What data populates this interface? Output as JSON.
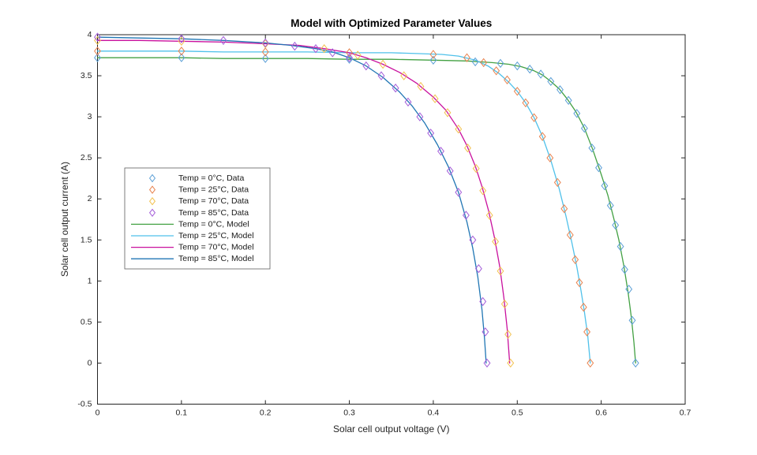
{
  "theme": {
    "background": "#ffffff",
    "axis_color": "#242424",
    "tick_label_color": "#262626",
    "title_color": "#000000",
    "legend_border_color": "#5f5f5f",
    "legend_background": "#ffffff"
  },
  "chart_data": {
    "type": "line",
    "title": "Model with Optimized Parameter Values",
    "xlabel": "Solar cell output voltage (V)",
    "ylabel": "Solar cell output current (A)",
    "xlim": [
      0,
      0.7
    ],
    "ylim": [
      -0.5,
      4
    ],
    "grid": false,
    "box": true,
    "tick_direction": "in",
    "legend_position": "left-middle",
    "xticks": {
      "values": [
        0,
        0.1,
        0.2,
        0.3,
        0.4,
        0.5,
        0.6,
        0.7
      ],
      "labels": [
        "0",
        "0.1",
        "0.2",
        "0.3",
        "0.4",
        "0.5",
        "0.6",
        "0.7"
      ]
    },
    "yticks": {
      "values": [
        -0.5,
        0,
        0.5,
        1,
        1.5,
        2,
        2.5,
        3,
        3.5,
        4
      ],
      "labels": [
        "-0.5",
        "0",
        "0.5",
        "1",
        "1.5",
        "2",
        "2.5",
        "3",
        "3.5",
        "4"
      ]
    },
    "series": [
      {
        "name": "Temp = 0°C, Data",
        "kind": "scatter",
        "marker": "diamond",
        "color": "#5B9FD6",
        "points": [
          [
            0,
            3.72
          ],
          [
            0.1,
            3.72
          ],
          [
            0.2,
            3.71
          ],
          [
            0.3,
            3.7
          ],
          [
            0.4,
            3.69
          ],
          [
            0.45,
            3.67
          ],
          [
            0.48,
            3.65
          ],
          [
            0.5,
            3.62
          ],
          [
            0.515,
            3.58
          ],
          [
            0.528,
            3.52
          ],
          [
            0.54,
            3.43
          ],
          [
            0.551,
            3.33
          ],
          [
            0.561,
            3.2
          ],
          [
            0.571,
            3.04
          ],
          [
            0.58,
            2.86
          ],
          [
            0.589,
            2.62
          ],
          [
            0.597,
            2.38
          ],
          [
            0.604,
            2.16
          ],
          [
            0.611,
            1.92
          ],
          [
            0.617,
            1.68
          ],
          [
            0.623,
            1.42
          ],
          [
            0.628,
            1.14
          ],
          [
            0.633,
            0.9
          ],
          [
            0.637,
            0.52
          ],
          [
            0.641,
            0
          ]
        ]
      },
      {
        "name": "Temp = 25°C, Data",
        "kind": "scatter",
        "marker": "diamond",
        "color": "#E8824E",
        "points": [
          [
            0,
            3.8
          ],
          [
            0.1,
            3.8
          ],
          [
            0.2,
            3.79
          ],
          [
            0.3,
            3.78
          ],
          [
            0.4,
            3.76
          ],
          [
            0.44,
            3.72
          ],
          [
            0.46,
            3.66
          ],
          [
            0.475,
            3.56
          ],
          [
            0.488,
            3.45
          ],
          [
            0.5,
            3.31
          ],
          [
            0.51,
            3.17
          ],
          [
            0.52,
            2.99
          ],
          [
            0.53,
            2.76
          ],
          [
            0.539,
            2.5
          ],
          [
            0.548,
            2.2
          ],
          [
            0.556,
            1.88
          ],
          [
            0.563,
            1.56
          ],
          [
            0.569,
            1.26
          ],
          [
            0.574,
            0.98
          ],
          [
            0.579,
            0.68
          ],
          [
            0.583,
            0.38
          ],
          [
            0.587,
            0
          ]
        ]
      },
      {
        "name": "Temp = 70°C, Data",
        "kind": "scatter",
        "marker": "diamond",
        "color": "#F2C14E",
        "points": [
          [
            0,
            3.93
          ],
          [
            0.1,
            3.92
          ],
          [
            0.2,
            3.89
          ],
          [
            0.27,
            3.83
          ],
          [
            0.31,
            3.75
          ],
          [
            0.34,
            3.64
          ],
          [
            0.365,
            3.5
          ],
          [
            0.385,
            3.37
          ],
          [
            0.402,
            3.22
          ],
          [
            0.417,
            3.05
          ],
          [
            0.43,
            2.85
          ],
          [
            0.441,
            2.62
          ],
          [
            0.451,
            2.37
          ],
          [
            0.459,
            2.1
          ],
          [
            0.467,
            1.8
          ],
          [
            0.474,
            1.48
          ],
          [
            0.48,
            1.12
          ],
          [
            0.485,
            0.72
          ],
          [
            0.489,
            0.35
          ],
          [
            0.492,
            0
          ]
        ]
      },
      {
        "name": "Temp = 85°C, Data",
        "kind": "scatter",
        "marker": "diamond",
        "color": "#A35CD9",
        "points": [
          [
            0,
            3.97
          ],
          [
            0.1,
            3.95
          ],
          [
            0.15,
            3.93
          ],
          [
            0.2,
            3.9
          ],
          [
            0.235,
            3.86
          ],
          [
            0.26,
            3.83
          ],
          [
            0.28,
            3.78
          ],
          [
            0.3,
            3.72
          ],
          [
            0.32,
            3.62
          ],
          [
            0.338,
            3.5
          ],
          [
            0.355,
            3.35
          ],
          [
            0.37,
            3.18
          ],
          [
            0.384,
            3.0
          ],
          [
            0.397,
            2.8
          ],
          [
            0.409,
            2.58
          ],
          [
            0.42,
            2.34
          ],
          [
            0.43,
            2.08
          ],
          [
            0.439,
            1.8
          ],
          [
            0.447,
            1.5
          ],
          [
            0.454,
            1.15
          ],
          [
            0.459,
            0.75
          ],
          [
            0.462,
            0.38
          ],
          [
            0.464,
            0
          ]
        ]
      },
      {
        "name": "Temp = 0°C, Model",
        "kind": "line",
        "color": "#43A143",
        "points": [
          [
            0,
            3.72
          ],
          [
            0.05,
            3.72
          ],
          [
            0.1,
            3.72
          ],
          [
            0.15,
            3.71
          ],
          [
            0.2,
            3.71
          ],
          [
            0.25,
            3.71
          ],
          [
            0.3,
            3.7
          ],
          [
            0.35,
            3.7
          ],
          [
            0.4,
            3.69
          ],
          [
            0.44,
            3.68
          ],
          [
            0.47,
            3.66
          ],
          [
            0.49,
            3.64
          ],
          [
            0.505,
            3.61
          ],
          [
            0.52,
            3.56
          ],
          [
            0.53,
            3.51
          ],
          [
            0.54,
            3.43
          ],
          [
            0.55,
            3.34
          ],
          [
            0.56,
            3.21
          ],
          [
            0.57,
            3.06
          ],
          [
            0.58,
            2.86
          ],
          [
            0.59,
            2.6
          ],
          [
            0.6,
            2.3
          ],
          [
            0.608,
            2.04
          ],
          [
            0.615,
            1.76
          ],
          [
            0.621,
            1.5
          ],
          [
            0.627,
            1.18
          ],
          [
            0.632,
            0.86
          ],
          [
            0.636,
            0.55
          ],
          [
            0.639,
            0.25
          ],
          [
            0.641,
            0
          ]
        ]
      },
      {
        "name": "Temp = 25°C, Model",
        "kind": "line",
        "color": "#4FC1EA",
        "points": [
          [
            0,
            3.8
          ],
          [
            0.05,
            3.8
          ],
          [
            0.1,
            3.8
          ],
          [
            0.15,
            3.79
          ],
          [
            0.2,
            3.79
          ],
          [
            0.25,
            3.79
          ],
          [
            0.3,
            3.78
          ],
          [
            0.35,
            3.78
          ],
          [
            0.38,
            3.77
          ],
          [
            0.41,
            3.76
          ],
          [
            0.43,
            3.74
          ],
          [
            0.45,
            3.69
          ],
          [
            0.465,
            3.62
          ],
          [
            0.478,
            3.53
          ],
          [
            0.49,
            3.42
          ],
          [
            0.5,
            3.31
          ],
          [
            0.51,
            3.17
          ],
          [
            0.52,
            2.99
          ],
          [
            0.53,
            2.76
          ],
          [
            0.54,
            2.47
          ],
          [
            0.55,
            2.12
          ],
          [
            0.558,
            1.79
          ],
          [
            0.565,
            1.47
          ],
          [
            0.571,
            1.17
          ],
          [
            0.576,
            0.88
          ],
          [
            0.58,
            0.62
          ],
          [
            0.584,
            0.33
          ],
          [
            0.587,
            0
          ]
        ]
      },
      {
        "name": "Temp = 70°C, Model",
        "kind": "line",
        "color": "#C9119E",
        "points": [
          [
            0,
            3.93
          ],
          [
            0.05,
            3.93
          ],
          [
            0.1,
            3.92
          ],
          [
            0.15,
            3.91
          ],
          [
            0.2,
            3.89
          ],
          [
            0.24,
            3.87
          ],
          [
            0.27,
            3.83
          ],
          [
            0.3,
            3.78
          ],
          [
            0.32,
            3.72
          ],
          [
            0.34,
            3.64
          ],
          [
            0.36,
            3.54
          ],
          [
            0.38,
            3.41
          ],
          [
            0.4,
            3.24
          ],
          [
            0.415,
            3.08
          ],
          [
            0.43,
            2.85
          ],
          [
            0.44,
            2.65
          ],
          [
            0.45,
            2.4
          ],
          [
            0.458,
            2.15
          ],
          [
            0.466,
            1.85
          ],
          [
            0.473,
            1.52
          ],
          [
            0.479,
            1.18
          ],
          [
            0.484,
            0.8
          ],
          [
            0.488,
            0.42
          ],
          [
            0.491,
            0
          ]
        ]
      },
      {
        "name": "Temp = 85°C, Model",
        "kind": "line",
        "color": "#2076B4",
        "points": [
          [
            0,
            3.97
          ],
          [
            0.05,
            3.96
          ],
          [
            0.1,
            3.95
          ],
          [
            0.15,
            3.93
          ],
          [
            0.2,
            3.9
          ],
          [
            0.23,
            3.87
          ],
          [
            0.26,
            3.83
          ],
          [
            0.28,
            3.79
          ],
          [
            0.3,
            3.72
          ],
          [
            0.32,
            3.62
          ],
          [
            0.34,
            3.48
          ],
          [
            0.36,
            3.3
          ],
          [
            0.375,
            3.13
          ],
          [
            0.39,
            2.92
          ],
          [
            0.405,
            2.66
          ],
          [
            0.418,
            2.39
          ],
          [
            0.43,
            2.08
          ],
          [
            0.44,
            1.72
          ],
          [
            0.447,
            1.4
          ],
          [
            0.453,
            1.05
          ],
          [
            0.458,
            0.65
          ],
          [
            0.461,
            0.3
          ],
          [
            0.463,
            0
          ]
        ]
      }
    ]
  }
}
